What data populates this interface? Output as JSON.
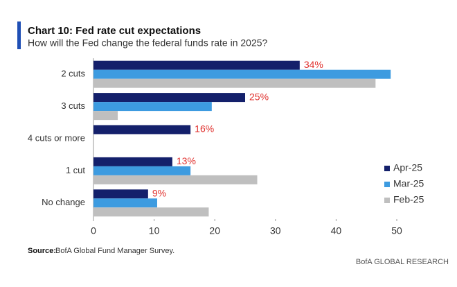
{
  "chart_data": {
    "type": "hbar",
    "title": "Chart 10: Fed rate cut expectations",
    "subtitle": "How will the Fed change the federal funds rate in 2025?",
    "source_label": "Source:",
    "source": "BofA Global Fund Manager Survey.",
    "footer": "BofA GLOBAL RESEARCH",
    "categories": [
      "2 cuts",
      "3 cuts",
      "4 cuts or more",
      "1 cut",
      "No change"
    ],
    "series": [
      {
        "name": "Apr-25",
        "color": "#14206b",
        "values": [
          34,
          25,
          16,
          13,
          9
        ],
        "value_labels": [
          "34%",
          "25%",
          "16%",
          "13%",
          "9%"
        ],
        "label_color": "#e0312e"
      },
      {
        "name": "Mar-25",
        "color": "#3d9be0",
        "values": [
          49,
          19.5,
          0,
          16,
          10.5
        ]
      },
      {
        "name": "Feb-25",
        "color": "#bfbfbf",
        "values": [
          46.5,
          4,
          0,
          27,
          19
        ]
      }
    ],
    "xlim": [
      0,
      50
    ],
    "xticks": [
      0,
      10,
      20,
      30,
      40,
      50
    ],
    "legend": "right"
  }
}
